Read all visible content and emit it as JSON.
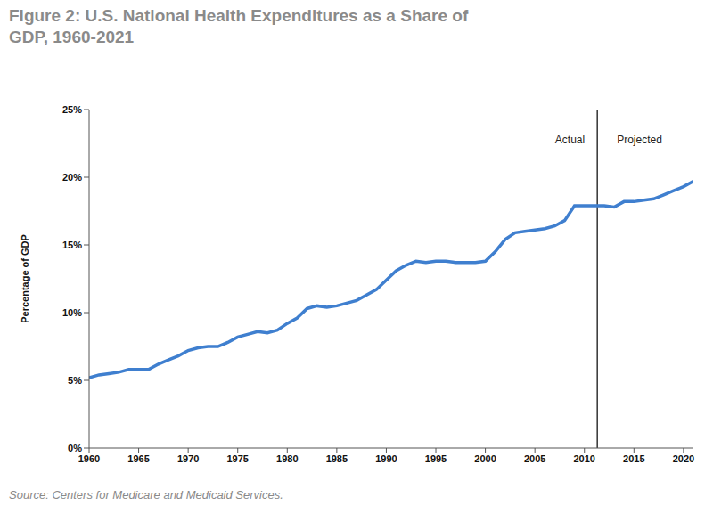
{
  "chart_data": {
    "type": "line",
    "title": "Figure 2: U.S. National Health Expenditures as a Share of GDP, 1960-2021",
    "source": "Source: Centers for Medicare and Medicaid Services.",
    "y_label": "Percentage of GDP",
    "x": [
      1960,
      1961,
      1962,
      1963,
      1964,
      1965,
      1966,
      1967,
      1968,
      1969,
      1970,
      1971,
      1972,
      1973,
      1974,
      1975,
      1976,
      1977,
      1978,
      1979,
      1980,
      1981,
      1982,
      1983,
      1984,
      1985,
      1986,
      1987,
      1988,
      1989,
      1990,
      1991,
      1992,
      1993,
      1994,
      1995,
      1996,
      1997,
      1998,
      1999,
      2000,
      2001,
      2002,
      2003,
      2004,
      2005,
      2006,
      2007,
      2008,
      2009,
      2010,
      2011,
      2012,
      2013,
      2014,
      2015,
      2016,
      2017,
      2018,
      2019,
      2020,
      2021
    ],
    "values": [
      5.2,
      5.4,
      5.5,
      5.6,
      5.8,
      5.8,
      5.8,
      6.2,
      6.5,
      6.8,
      7.2,
      7.4,
      7.5,
      7.5,
      7.8,
      8.2,
      8.4,
      8.6,
      8.5,
      8.7,
      9.2,
      9.6,
      10.3,
      10.5,
      10.4,
      10.5,
      10.7,
      10.9,
      11.3,
      11.7,
      12.4,
      13.1,
      13.5,
      13.8,
      13.7,
      13.8,
      13.8,
      13.7,
      13.7,
      13.7,
      13.8,
      14.5,
      15.4,
      15.9,
      16.0,
      16.1,
      16.2,
      16.4,
      16.8,
      17.9,
      17.9,
      17.9,
      17.9,
      17.8,
      18.2,
      18.2,
      18.3,
      18.4,
      18.7,
      19.0,
      19.3,
      19.7
    ],
    "color": "#3f7fcf",
    "projection_start": 2011.3,
    "annotations": [
      "Actual",
      "Projected"
    ],
    "xlim": [
      1960,
      2021
    ],
    "xticks": [
      1960,
      1965,
      1970,
      1975,
      1980,
      1985,
      1990,
      1995,
      2000,
      2005,
      2010,
      2015,
      2020
    ],
    "ylim": [
      0,
      25
    ],
    "yticks": [
      {
        "value": 0,
        "label": "0%"
      },
      {
        "value": 5,
        "label": "5%"
      },
      {
        "value": 10,
        "label": "10%"
      },
      {
        "value": 15,
        "label": "15%"
      },
      {
        "value": 20,
        "label": "20%"
      },
      {
        "value": 25,
        "label": "25%"
      }
    ],
    "grid": false
  }
}
